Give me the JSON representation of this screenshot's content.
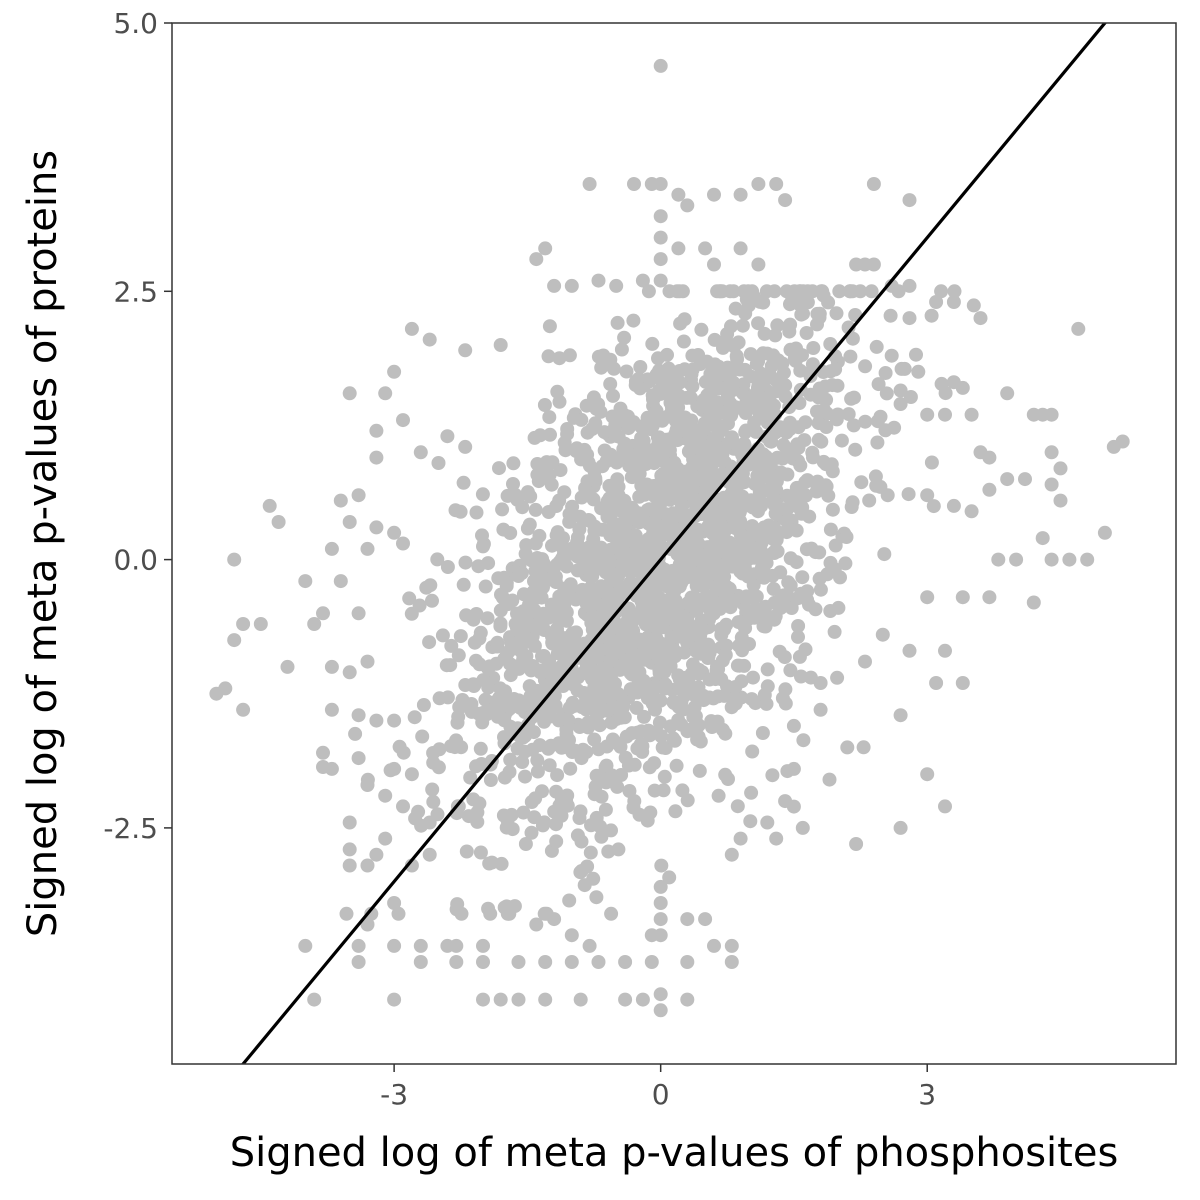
{
  "chart_data": {
    "type": "scatter",
    "title": "",
    "xlabel": "Signed log of meta p-values of phosphosites",
    "ylabel": "Signed log of meta p-values of proteins",
    "xlim": [
      -5.5,
      5.8
    ],
    "ylim": [
      -4.7,
      5.0
    ],
    "x_ticks": [
      {
        "value": -3,
        "label": "-3"
      },
      {
        "value": 0,
        "label": "0"
      },
      {
        "value": 3,
        "label": "3"
      }
    ],
    "y_ticks": [
      {
        "value": 5.0,
        "label": "5.0"
      },
      {
        "value": 2.5,
        "label": "2.5"
      },
      {
        "value": 0.0,
        "label": "0.0"
      },
      {
        "value": -2.5,
        "label": "-2.5"
      }
    ],
    "grid": false,
    "legend": "none",
    "point_color": "#bebebe",
    "line_color": "#000000",
    "reference_line": {
      "slope": 1,
      "intercept": 0
    },
    "cloud": {
      "n_points": 2200,
      "center": [
        0,
        0
      ],
      "sd_x": 1.1,
      "sd_y": 1.2,
      "correlation": 0.5
    },
    "points": [
      [
        0.0,
        4.6
      ],
      [
        -0.8,
        3.5
      ],
      [
        -0.3,
        3.5
      ],
      [
        -0.1,
        3.5
      ],
      [
        0.0,
        3.5
      ],
      [
        1.1,
        3.5
      ],
      [
        1.3,
        3.5
      ],
      [
        2.4,
        3.5
      ],
      [
        0.2,
        3.4
      ],
      [
        0.6,
        3.4
      ],
      [
        0.9,
        3.4
      ],
      [
        2.8,
        3.35
      ],
      [
        0.3,
        3.3
      ],
      [
        1.4,
        3.35
      ],
      [
        0.0,
        3.2
      ],
      [
        0.0,
        3.0
      ],
      [
        0.0,
        2.8
      ],
      [
        0.0,
        2.6
      ],
      [
        0.2,
        2.9
      ],
      [
        0.5,
        2.9
      ],
      [
        0.9,
        2.9
      ],
      [
        0.6,
        2.75
      ],
      [
        1.1,
        2.75
      ],
      [
        -1.3,
        2.9
      ],
      [
        -1.4,
        2.8
      ],
      [
        -0.2,
        2.6
      ],
      [
        -0.7,
        2.6
      ],
      [
        -1.0,
        2.55
      ],
      [
        -1.2,
        2.55
      ],
      [
        -0.5,
        2.55
      ],
      [
        2.2,
        2.75
      ],
      [
        2.3,
        2.75
      ],
      [
        2.4,
        2.75
      ],
      [
        2.6,
        2.55
      ],
      [
        2.8,
        2.55
      ],
      [
        3.1,
        2.4
      ],
      [
        3.3,
        2.4
      ],
      [
        2.8,
        2.25
      ],
      [
        3.6,
        2.25
      ],
      [
        4.7,
        2.15
      ],
      [
        -2.8,
        2.15
      ],
      [
        -2.6,
        2.05
      ],
      [
        -1.8,
        2.0
      ],
      [
        -2.2,
        1.95
      ],
      [
        -3.0,
        1.75
      ],
      [
        -3.1,
        1.55
      ],
      [
        -3.5,
        1.55
      ],
      [
        -2.9,
        1.3
      ],
      [
        -3.2,
        1.2
      ],
      [
        -2.4,
        1.15
      ],
      [
        -2.2,
        1.05
      ],
      [
        -2.7,
        1.0
      ],
      [
        -3.2,
        0.95
      ],
      [
        -2.5,
        0.9
      ],
      [
        -3.6,
        0.55
      ],
      [
        -3.4,
        0.6
      ],
      [
        -4.4,
        0.5
      ],
      [
        -4.3,
        0.35
      ],
      [
        -3.5,
        0.35
      ],
      [
        -3.2,
        0.3
      ],
      [
        -3.0,
        0.25
      ],
      [
        -2.9,
        0.15
      ],
      [
        -3.3,
        0.1
      ],
      [
        -3.7,
        0.1
      ],
      [
        -4.8,
        0.0
      ],
      [
        -4.0,
        -0.2
      ],
      [
        -3.6,
        -0.2
      ],
      [
        -4.7,
        -0.6
      ],
      [
        -4.5,
        -0.6
      ],
      [
        -3.9,
        -0.6
      ],
      [
        -3.8,
        -0.5
      ],
      [
        -3.4,
        -0.5
      ],
      [
        -4.8,
        -0.75
      ],
      [
        -4.2,
        -1.0
      ],
      [
        -3.7,
        -1.0
      ],
      [
        -3.5,
        -1.05
      ],
      [
        -3.3,
        -0.95
      ],
      [
        -4.9,
        -1.2
      ],
      [
        -5.0,
        -1.25
      ],
      [
        -4.7,
        -1.4
      ],
      [
        -3.7,
        -1.4
      ],
      [
        -3.4,
        -1.45
      ],
      [
        -3.2,
        -1.5
      ],
      [
        -3.0,
        -1.5
      ],
      [
        -3.8,
        -1.8
      ],
      [
        -3.4,
        -1.85
      ],
      [
        -3.7,
        -1.95
      ],
      [
        -3.0,
        -1.95
      ],
      [
        -2.8,
        -2.0
      ],
      [
        -3.3,
        -2.1
      ],
      [
        -3.1,
        -2.2
      ],
      [
        -2.9,
        -2.3
      ],
      [
        -3.5,
        -2.45
      ],
      [
        -2.6,
        -2.45
      ],
      [
        -3.1,
        -2.6
      ],
      [
        -3.5,
        -2.7
      ],
      [
        -3.2,
        -2.75
      ],
      [
        -2.6,
        -2.75
      ],
      [
        -2.8,
        -2.85
      ],
      [
        -3.5,
        -2.85
      ],
      [
        -3.3,
        -2.85
      ],
      [
        -3.0,
        -3.2
      ],
      [
        -3.3,
        -3.4
      ],
      [
        -3.4,
        -3.6
      ],
      [
        -3.0,
        -3.6
      ],
      [
        -2.7,
        -3.6
      ],
      [
        -2.4,
        -3.6
      ],
      [
        -2.3,
        -3.6
      ],
      [
        -2.0,
        -3.6
      ],
      [
        -4.0,
        -3.6
      ],
      [
        -3.4,
        -3.75
      ],
      [
        -2.7,
        -3.75
      ],
      [
        -2.3,
        -3.75
      ],
      [
        -2.0,
        -3.75
      ],
      [
        -1.6,
        -3.75
      ],
      [
        -1.3,
        -3.75
      ],
      [
        -1.0,
        -3.75
      ],
      [
        -0.7,
        -3.75
      ],
      [
        -0.4,
        -3.75
      ],
      [
        -0.1,
        -3.75
      ],
      [
        0.3,
        -3.75
      ],
      [
        0.8,
        -3.75
      ],
      [
        -3.9,
        -4.1
      ],
      [
        -3.0,
        -4.1
      ],
      [
        -2.0,
        -4.1
      ],
      [
        -1.8,
        -4.1
      ],
      [
        -1.6,
        -4.1
      ],
      [
        -1.3,
        -4.1
      ],
      [
        -0.9,
        -4.1
      ],
      [
        -0.4,
        -4.1
      ],
      [
        -0.2,
        -4.1
      ],
      [
        0.0,
        -4.05
      ],
      [
        0.3,
        -4.1
      ],
      [
        0.0,
        -4.2
      ],
      [
        0.0,
        -3.5
      ],
      [
        0.0,
        -3.35
      ],
      [
        0.0,
        -3.2
      ],
      [
        0.0,
        -3.05
      ],
      [
        0.3,
        -3.35
      ],
      [
        0.5,
        -3.35
      ],
      [
        -0.1,
        -3.5
      ],
      [
        -1.4,
        -3.4
      ],
      [
        -1.2,
        -3.35
      ],
      [
        -1.0,
        -3.5
      ],
      [
        -0.8,
        -3.6
      ],
      [
        0.8,
        -3.6
      ],
      [
        0.6,
        -3.6
      ],
      [
        2.2,
        -2.65
      ],
      [
        2.7,
        -2.5
      ],
      [
        3.2,
        -2.3
      ],
      [
        3.0,
        -2.0
      ],
      [
        2.7,
        -1.45
      ],
      [
        3.1,
        -1.15
      ],
      [
        3.4,
        -1.15
      ],
      [
        3.2,
        -0.85
      ],
      [
        2.8,
        -0.85
      ],
      [
        2.5,
        -0.7
      ],
      [
        2.0,
        -0.45
      ],
      [
        3.0,
        -0.35
      ],
      [
        3.4,
        -0.35
      ],
      [
        3.7,
        -0.35
      ],
      [
        4.2,
        -0.4
      ],
      [
        3.8,
        0.0
      ],
      [
        4.0,
        0.0
      ],
      [
        4.3,
        0.2
      ],
      [
        4.4,
        0.0
      ],
      [
        4.6,
        0.0
      ],
      [
        4.8,
        0.0
      ],
      [
        5.0,
        0.25
      ],
      [
        4.5,
        0.55
      ],
      [
        4.4,
        0.7
      ],
      [
        4.1,
        0.75
      ],
      [
        3.9,
        0.75
      ],
      [
        4.5,
        0.85
      ],
      [
        3.7,
        0.95
      ],
      [
        4.4,
        1.0
      ],
      [
        5.2,
        1.1
      ],
      [
        5.1,
        1.05
      ],
      [
        4.3,
        1.35
      ],
      [
        4.2,
        1.35
      ],
      [
        4.4,
        1.35
      ],
      [
        3.9,
        1.55
      ],
      [
        3.4,
        1.6
      ],
      [
        3.2,
        1.35
      ],
      [
        3.5,
        1.35
      ],
      [
        3.0,
        1.35
      ],
      [
        2.7,
        1.45
      ],
      [
        2.6,
        1.9
      ],
      [
        2.9,
        1.75
      ],
      [
        3.6,
        1.0
      ],
      [
        3.3,
        0.5
      ],
      [
        3.0,
        0.6
      ],
      [
        3.5,
        0.45
      ],
      [
        3.7,
        0.65
      ],
      [
        2.3,
        -0.95
      ],
      [
        1.8,
        -1.4
      ],
      [
        1.5,
        -1.55
      ],
      [
        1.5,
        -1.95
      ],
      [
        1.4,
        -2.25
      ],
      [
        1.2,
        -2.45
      ],
      [
        1.3,
        -2.6
      ],
      [
        0.9,
        -2.6
      ],
      [
        0.8,
        -2.75
      ],
      [
        1.6,
        -2.5
      ],
      [
        1.9,
        -2.05
      ],
      [
        2.1,
        -1.75
      ],
      [
        1.8,
        -1.15
      ]
    ]
  }
}
